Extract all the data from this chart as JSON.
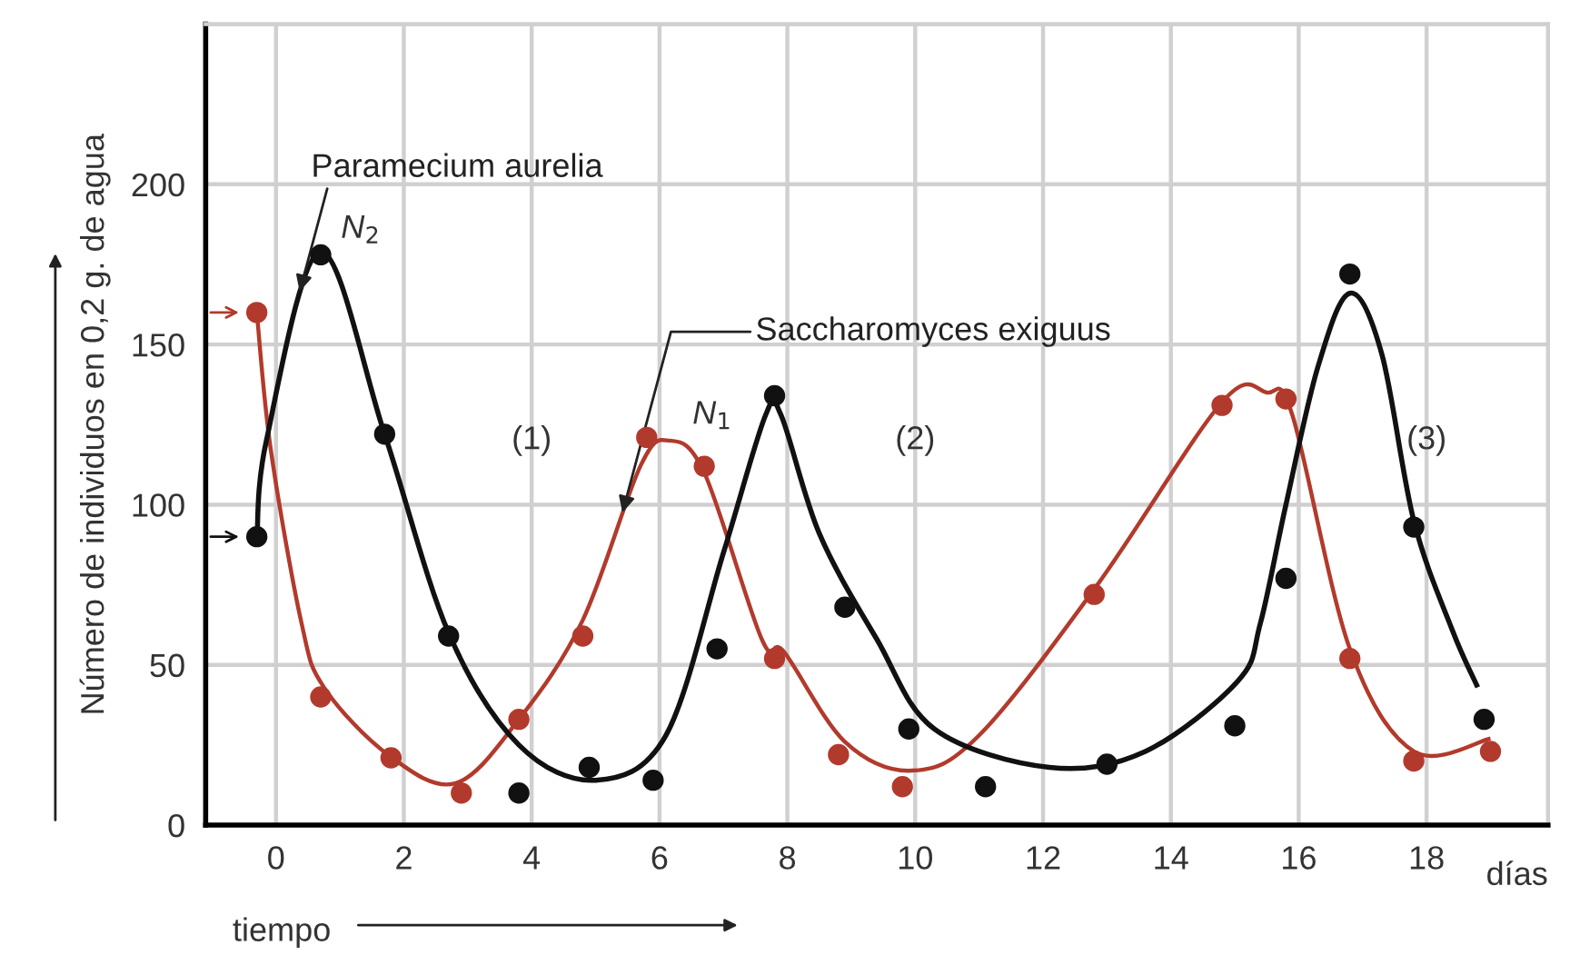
{
  "chart_data": {
    "type": "scatter",
    "ylabel": "Número de individuos en 0,2 g. de agua",
    "xlabel": "tiempo",
    "xlim": [
      -1.1,
      19.9
    ],
    "ylim": [
      0,
      250
    ],
    "xticks": [
      0,
      2,
      4,
      6,
      8,
      10,
      12,
      14,
      16,
      18
    ],
    "yticks": [
      0,
      50,
      100,
      150,
      200
    ],
    "grid": true,
    "legend": false,
    "marker": "circle",
    "series": [
      {
        "type": "line",
        "color": "#b23a2c",
        "marker": "none",
        "x": [
          -0.3,
          -0.08,
          0.4,
          0.75,
          1.75,
          2.8,
          3.8,
          4.8,
          5.7,
          6.15,
          6.7,
          7.6,
          7.95,
          8.9,
          9.95,
          11.0,
          12.85,
          14.8,
          15.5,
          15.9,
          16.8,
          17.8,
          19.0
        ],
        "values": [
          160,
          117,
          63,
          43,
          22,
          13,
          33,
          64,
          112,
          120,
          110,
          58,
          54,
          26,
          17,
          28,
          75,
          132,
          135,
          128,
          55,
          23,
          27
        ]
      },
      {
        "type": "line",
        "color": "#111111",
        "marker": "none",
        "x": [
          -0.3,
          -0.15,
          0.7,
          1.7,
          2.7,
          3.8,
          5.0,
          6.1,
          7.0,
          7.66,
          7.9,
          8.5,
          9.4,
          10.3,
          12.1,
          13.6,
          15.05,
          15.4,
          15.8,
          16.3,
          16.8,
          17.3,
          17.8,
          18.4,
          18.8
        ],
        "values": [
          88,
          120,
          179,
          122,
          60,
          25,
          14,
          28,
          85,
          128,
          128,
          91,
          58,
          30,
          18,
          23,
          45,
          63,
          100,
          143,
          166,
          147,
          95,
          61,
          43
        ]
      },
      {
        "color": "#b23a2c",
        "x": [
          -0.3,
          0.7,
          1.8,
          2.9,
          3.8,
          4.8,
          5.8,
          6.7,
          7.8,
          8.8,
          9.8,
          12.8,
          14.8,
          15.8,
          16.8,
          17.8,
          19.0
        ],
        "values": [
          160,
          40,
          21,
          10,
          33,
          59,
          121,
          112,
          52,
          22,
          12,
          72,
          131,
          133,
          52,
          20,
          23
        ]
      },
      {
        "color": "#111111",
        "x": [
          -0.3,
          0.7,
          1.7,
          2.7,
          3.8,
          4.9,
          5.9,
          6.9,
          7.8,
          8.9,
          9.9,
          11.1,
          13.0,
          15.0,
          15.8,
          16.8,
          17.8,
          18.9
        ],
        "values": [
          90,
          178,
          122,
          59,
          10,
          18,
          14,
          55,
          134,
          68,
          30,
          12,
          19,
          31,
          77,
          172,
          93,
          33
        ]
      }
    ],
    "annotations": [
      {
        "text": "Paramecium aurelia",
        "x": 0.35,
        "y": 165
      },
      {
        "text": "Saccharomyces exiguus",
        "x": 5.4,
        "y": 96
      },
      {
        "text": "N$_{2}$",
        "x": 0.7,
        "y": 178
      },
      {
        "text": "N$_{1}$",
        "x": 6.2,
        "y": 120
      },
      "(1)",
      "(2)",
      "(3)",
      "días"
    ]
  }
}
